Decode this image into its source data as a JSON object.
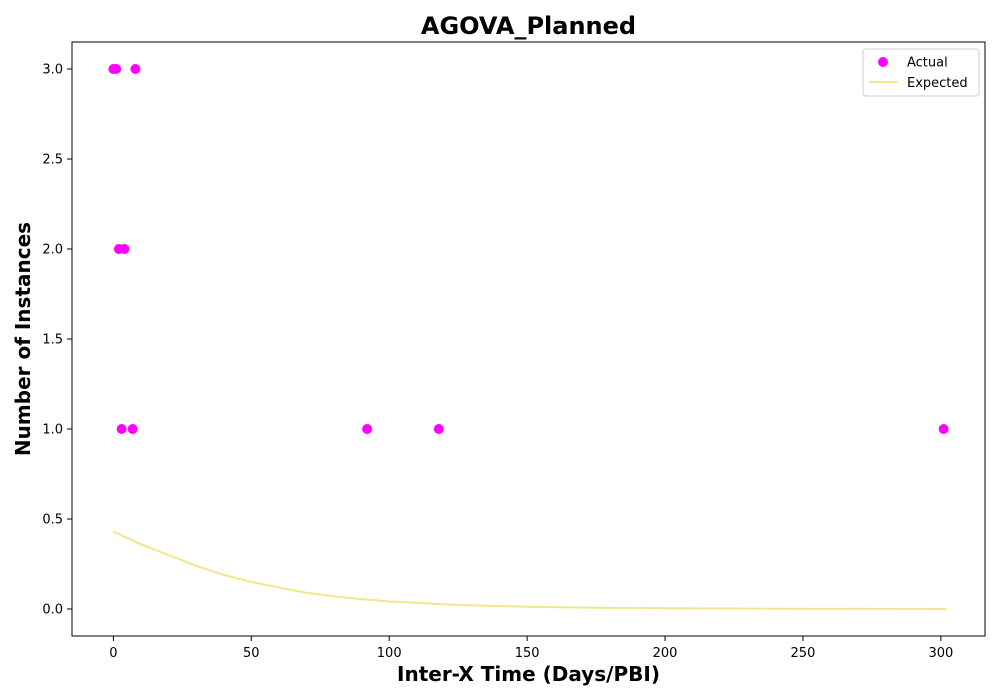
{
  "chart_data": {
    "type": "scatter",
    "title": "AGOVA_Planned",
    "xlabel": "Inter-X Time (Days/PBI)",
    "ylabel": "Number of Instances",
    "xlim": [
      -15,
      316
    ],
    "ylim": [
      -0.15,
      3.15
    ],
    "xticks": [
      0,
      50,
      100,
      150,
      200,
      250,
      300
    ],
    "yticks": [
      0.0,
      0.5,
      1.0,
      1.5,
      2.0,
      2.5,
      3.0
    ],
    "xtick_labels": [
      "0",
      "50",
      "100",
      "150",
      "200",
      "250",
      "300"
    ],
    "ytick_labels": [
      "0.0",
      "0.5",
      "1.0",
      "1.5",
      "2.0",
      "2.5",
      "3.0"
    ],
    "grid": false,
    "legend_position": "top-right",
    "series": [
      {
        "name": "Actual",
        "kind": "scatter",
        "color": "#ff00ff",
        "points": [
          {
            "x": 0,
            "y": 3
          },
          {
            "x": 1,
            "y": 3
          },
          {
            "x": 8,
            "y": 3
          },
          {
            "x": 2,
            "y": 2
          },
          {
            "x": 4,
            "y": 2
          },
          {
            "x": 3,
            "y": 1
          },
          {
            "x": 7,
            "y": 1
          },
          {
            "x": 92,
            "y": 1
          },
          {
            "x": 118,
            "y": 1
          },
          {
            "x": 301,
            "y": 1
          }
        ]
      },
      {
        "name": "Expected",
        "kind": "line",
        "color": "#f0e68c",
        "points": [
          {
            "x": 0,
            "y": 0.43
          },
          {
            "x": 10,
            "y": 0.36
          },
          {
            "x": 20,
            "y": 0.3
          },
          {
            "x": 30,
            "y": 0.24
          },
          {
            "x": 40,
            "y": 0.19
          },
          {
            "x": 50,
            "y": 0.15
          },
          {
            "x": 60,
            "y": 0.12
          },
          {
            "x": 70,
            "y": 0.09
          },
          {
            "x": 80,
            "y": 0.07
          },
          {
            "x": 90,
            "y": 0.055
          },
          {
            "x": 100,
            "y": 0.042
          },
          {
            "x": 125,
            "y": 0.022
          },
          {
            "x": 150,
            "y": 0.012
          },
          {
            "x": 175,
            "y": 0.007
          },
          {
            "x": 200,
            "y": 0.004
          },
          {
            "x": 250,
            "y": 0.001
          },
          {
            "x": 302,
            "y": 0.0
          }
        ]
      }
    ]
  }
}
